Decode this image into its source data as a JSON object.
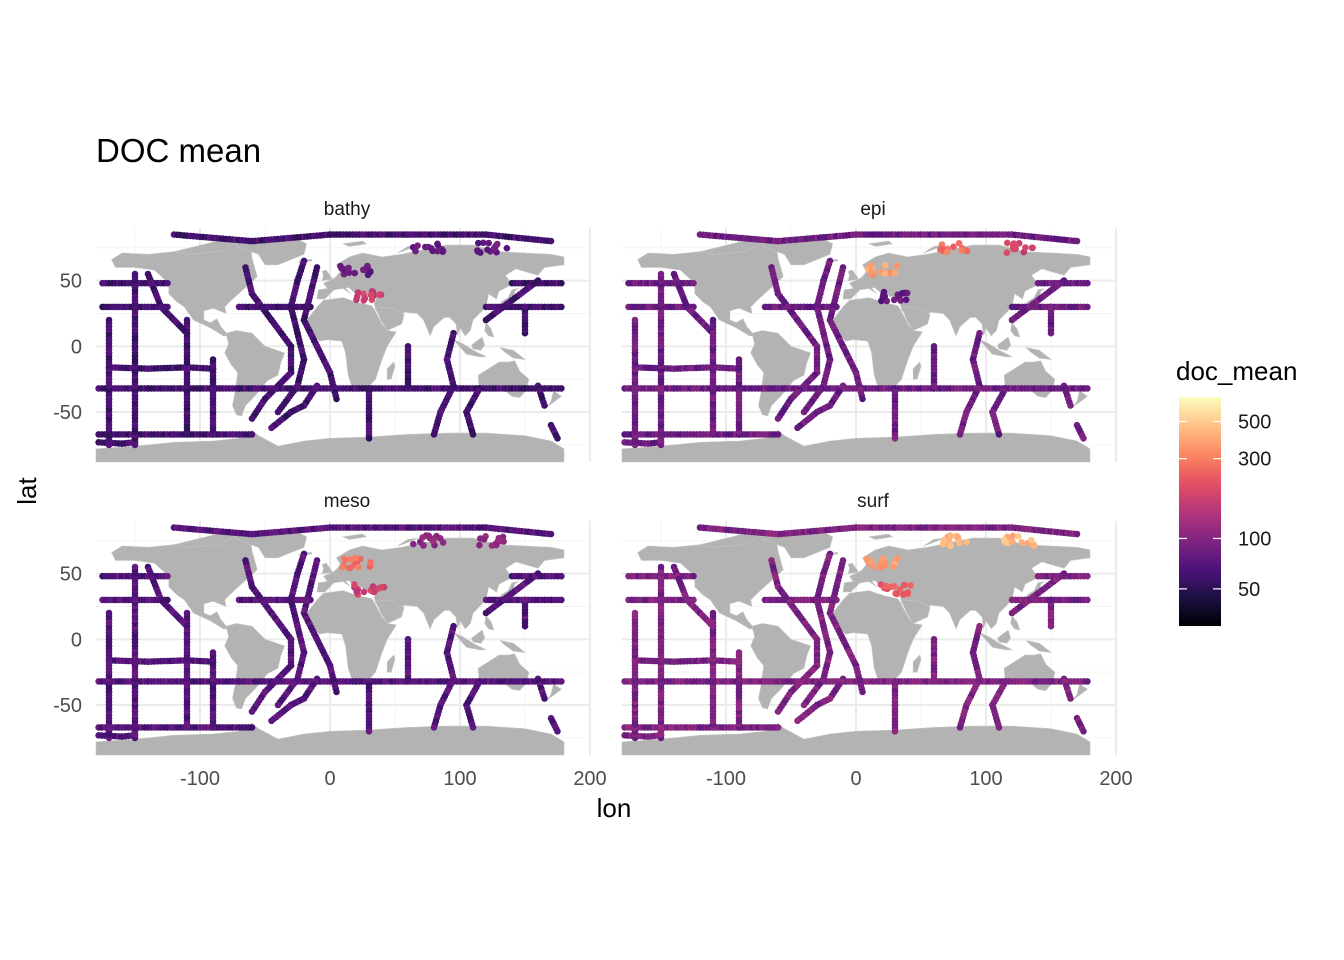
{
  "chart_data": {
    "type": "scatter",
    "title": "DOC mean",
    "xlabel": "lon",
    "ylabel": "lat",
    "xlim": [
      -180,
      200
    ],
    "ylim": [
      -88,
      90
    ],
    "x_ticks": [
      -100,
      0,
      100,
      200
    ],
    "x_tick_labels": [
      "-100",
      "0",
      "100",
      "200"
    ],
    "y_ticks": [
      -50,
      0,
      50
    ],
    "y_tick_labels": [
      "-50",
      "0",
      "50"
    ],
    "grid": true,
    "legend_placement": "right",
    "facets": [
      {
        "name": "bathy",
        "level": 0.22
      },
      {
        "name": "epi",
        "level": 0.32
      },
      {
        "name": "meso",
        "level": 0.26
      },
      {
        "name": "surf",
        "level": 0.36
      }
    ],
    "cruise_tracks": [
      {
        "name": "lat-48",
        "points": [
          [
            -175,
            48
          ],
          [
            -150,
            48
          ],
          [
            -125,
            48
          ]
        ]
      },
      {
        "name": "lat-30",
        "points": [
          [
            -175,
            30
          ],
          [
            -150,
            30
          ],
          [
            -125,
            30
          ]
        ]
      },
      {
        "name": "lat-30-pacific",
        "points": [
          [
            120,
            30
          ],
          [
            150,
            30
          ],
          [
            178,
            30
          ]
        ]
      },
      {
        "name": "lat-48-pacific",
        "points": [
          [
            140,
            48
          ],
          [
            160,
            48
          ],
          [
            178,
            48
          ]
        ]
      },
      {
        "name": "lat-30-atlantic",
        "points": [
          [
            -70,
            30
          ],
          [
            -40,
            30
          ],
          [
            -15,
            30
          ]
        ]
      },
      {
        "name": "lat-16-south-pacific",
        "points": [
          [
            -170,
            -16
          ],
          [
            -140,
            -17
          ],
          [
            -110,
            -16
          ],
          [
            -90,
            -17
          ]
        ]
      },
      {
        "name": "lat-32-south",
        "points": [
          [
            -178,
            -32
          ],
          [
            -140,
            -32
          ],
          [
            -100,
            -32
          ],
          [
            -70,
            -32
          ],
          [
            -40,
            -32
          ],
          [
            -10,
            -32
          ],
          [
            20,
            -32
          ],
          [
            60,
            -32
          ],
          [
            100,
            -32
          ],
          [
            115,
            -32
          ],
          [
            150,
            -32
          ],
          [
            178,
            -32
          ]
        ]
      },
      {
        "name": "lat-67-south",
        "points": [
          [
            -178,
            -67
          ],
          [
            -150,
            -67
          ],
          [
            -120,
            -67
          ],
          [
            -90,
            -67
          ],
          [
            -60,
            -67
          ]
        ]
      },
      {
        "name": "lat-73-south",
        "points": [
          [
            -178,
            -73
          ],
          [
            -160,
            -74
          ],
          [
            -150,
            -73
          ]
        ]
      },
      {
        "name": "lon-170W",
        "points": [
          [
            -170,
            -75
          ],
          [
            -170,
            -40
          ],
          [
            -170,
            -5
          ],
          [
            -170,
            20
          ]
        ]
      },
      {
        "name": "lon-150W",
        "points": [
          [
            -150,
            -75
          ],
          [
            -150,
            -40
          ],
          [
            -150,
            0
          ],
          [
            -150,
            30
          ],
          [
            -150,
            55
          ]
        ]
      },
      {
        "name": "lon-110W",
        "points": [
          [
            -110,
            -67
          ],
          [
            -110,
            -30
          ],
          [
            -110,
            0
          ],
          [
            -110,
            20
          ]
        ]
      },
      {
        "name": "lon-90W",
        "points": [
          [
            -90,
            -67
          ],
          [
            -90,
            -30
          ],
          [
            -90,
            -10
          ]
        ]
      },
      {
        "name": "lon-130W-north",
        "points": [
          [
            -140,
            55
          ],
          [
            -130,
            30
          ],
          [
            -110,
            10
          ]
        ]
      },
      {
        "name": "west-atlantic",
        "points": [
          [
            -65,
            60
          ],
          [
            -60,
            40
          ],
          [
            -45,
            20
          ],
          [
            -30,
            0
          ],
          [
            -30,
            -20
          ],
          [
            -50,
            -40
          ],
          [
            -60,
            -55
          ]
        ]
      },
      {
        "name": "mid-atlantic",
        "points": [
          [
            -20,
            65
          ],
          [
            -25,
            50
          ],
          [
            -30,
            30
          ],
          [
            -25,
            10
          ],
          [
            -20,
            -10
          ],
          [
            -25,
            -30
          ],
          [
            -40,
            -50
          ]
        ]
      },
      {
        "name": "east-atlantic",
        "points": [
          [
            -10,
            60
          ],
          [
            -15,
            40
          ],
          [
            -20,
            20
          ],
          [
            -10,
            0
          ],
          [
            0,
            -20
          ],
          [
            5,
            -40
          ]
        ]
      },
      {
        "name": "south-atlantic",
        "points": [
          [
            -10,
            -30
          ],
          [
            -20,
            -45
          ],
          [
            -30,
            -50
          ],
          [
            -45,
            -62
          ]
        ]
      },
      {
        "name": "lon-30E",
        "points": [
          [
            30,
            -32
          ],
          [
            30,
            -50
          ],
          [
            30,
            -70
          ]
        ]
      },
      {
        "name": "indian-east",
        "points": [
          [
            95,
            10
          ],
          [
            90,
            -10
          ],
          [
            95,
            -30
          ],
          [
            85,
            -50
          ],
          [
            80,
            -67
          ]
        ]
      },
      {
        "name": "lon-60E",
        "points": [
          [
            60,
            0
          ],
          [
            60,
            -30
          ]
        ]
      },
      {
        "name": "lon-110E",
        "points": [
          [
            115,
            -32
          ],
          [
            105,
            -50
          ],
          [
            110,
            -67
          ]
        ]
      },
      {
        "name": "south-pacific-west",
        "points": [
          [
            170,
            -60
          ],
          [
            175,
            -70
          ]
        ]
      },
      {
        "name": "pacific-northwest",
        "points": [
          [
            120,
            20
          ],
          [
            140,
            35
          ],
          [
            160,
            50
          ]
        ]
      },
      {
        "name": "lon-150E",
        "points": [
          [
            150,
            10
          ],
          [
            150,
            30
          ]
        ]
      },
      {
        "name": "tasman",
        "points": [
          [
            160,
            -30
          ],
          [
            165,
            -45
          ]
        ]
      },
      {
        "name": "arctic",
        "points": [
          [
            -120,
            85
          ],
          [
            -60,
            80
          ],
          [
            0,
            85
          ],
          [
            60,
            85
          ],
          [
            120,
            85
          ],
          [
            170,
            80
          ]
        ]
      }
    ],
    "hotspots": [
      {
        "name": "mediterranean",
        "lon": 30,
        "lat": 38,
        "levels": [
          0.55,
          0.3,
          0.55,
          0.65
        ]
      },
      {
        "name": "baltic",
        "lon": 20,
        "lat": 58,
        "levels": [
          0.3,
          0.8,
          0.7,
          0.8
        ]
      },
      {
        "name": "kara-sea",
        "lon": 75,
        "lat": 75,
        "levels": [
          0.3,
          0.7,
          0.4,
          0.85
        ]
      },
      {
        "name": "laptev-sea",
        "lon": 125,
        "lat": 75,
        "levels": [
          0.3,
          0.55,
          0.4,
          0.85
        ]
      }
    ],
    "legend": {
      "title": "doc_mean",
      "min": 30,
      "max": 700,
      "scale": "log",
      "ticks": [
        50,
        100,
        300,
        500
      ],
      "tick_labels": [
        "50",
        "100",
        "300",
        "500"
      ],
      "palette": [
        "#000004",
        "#1c1044",
        "#4f127b",
        "#812581",
        "#b5367a",
        "#e55064",
        "#fb8761",
        "#fec287",
        "#fcfdbf"
      ]
    }
  },
  "colors": {
    "land": "#b3b3b3",
    "grid_major": "#ebebeb",
    "grid_minor": "#f5f5f5"
  }
}
